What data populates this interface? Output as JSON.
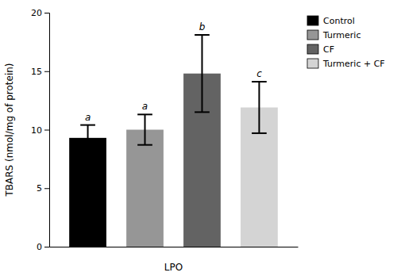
{
  "chart_data": {
    "type": "bar",
    "categories": [
      "Control",
      "Turmeric",
      "CF",
      "Turmeric + CF"
    ],
    "values": [
      9.3,
      10.0,
      14.8,
      11.9
    ],
    "errors": [
      1.1,
      1.3,
      3.3,
      2.2
    ],
    "colors": [
      "#000000",
      "#969696",
      "#636363",
      "#d4d4d4"
    ],
    "annotations": [
      "a",
      "a",
      "b",
      "c"
    ],
    "xlabel": "LPO",
    "ylabel": "TBARS (nmol/mg of protein)",
    "ylim": [
      0,
      20
    ],
    "yticks": [
      0,
      5,
      10,
      15,
      20
    ],
    "legend": "upper right",
    "tick_labels": "y",
    "grid": false
  }
}
